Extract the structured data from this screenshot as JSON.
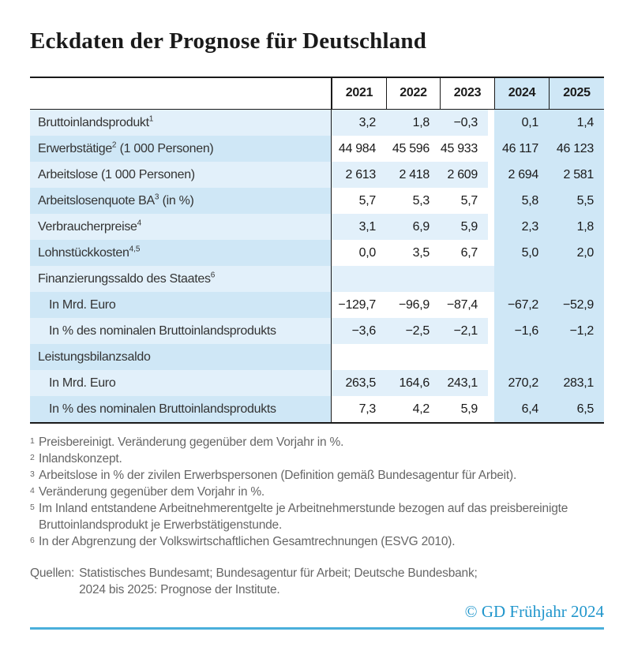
{
  "title": "Eckdaten der Prognose für Deutschland",
  "table": {
    "years": [
      "2021",
      "2022",
      "2023",
      "2024",
      "2025"
    ],
    "rows": [
      {
        "pre": "Bruttoinlandsprodukt",
        "sup": "1",
        "post": "",
        "values": [
          "3,2",
          "1,8",
          "−0,3",
          "0,1",
          "1,4"
        ]
      },
      {
        "pre": "Erwerbstätige",
        "sup": "2",
        "post": " (1 000 Personen)",
        "values": [
          "44 984",
          "45 596",
          "45 933",
          "46 117",
          "46 123"
        ]
      },
      {
        "pre": "Arbeitslose (1 000 Personen)",
        "sup": "",
        "post": "",
        "values": [
          "2 613",
          "2 418",
          "2 609",
          "2 694",
          "2 581"
        ]
      },
      {
        "pre": "Arbeitslosenquote BA",
        "sup": "3",
        "post": " (in %)",
        "values": [
          "5,7",
          "5,3",
          "5,7",
          "5,8",
          "5,5"
        ]
      },
      {
        "pre": "Verbraucherpreise",
        "sup": "4",
        "post": "",
        "values": [
          "3,1",
          "6,9",
          "5,9",
          "2,3",
          "1,8"
        ]
      },
      {
        "pre": "Lohnstückkosten",
        "sup": "4,5",
        "post": "",
        "values": [
          "0,0",
          "3,5",
          "6,7",
          "5,0",
          "2,0"
        ]
      },
      {
        "pre": "Finanzierungssaldo des Staates",
        "sup": "6",
        "post": "",
        "values": [
          "",
          "",
          "",
          "",
          ""
        ]
      },
      {
        "pre": "In Mrd. Euro",
        "sup": "",
        "post": "",
        "values": [
          "−129,7",
          "−96,9",
          "−87,4",
          "−67,2",
          "−52,9"
        ]
      },
      {
        "pre": "In % des nominalen Bruttoinlandsprodukts",
        "sup": "",
        "post": "",
        "values": [
          "−3,6",
          "−2,5",
          "−2,1",
          "−1,6",
          "−1,2"
        ]
      },
      {
        "pre": "Leistungsbilanzsaldo",
        "sup": "",
        "post": "",
        "values": [
          "",
          "",
          "",
          "",
          ""
        ]
      },
      {
        "pre": "In Mrd. Euro",
        "sup": "",
        "post": "",
        "values": [
          "263,5",
          "164,6",
          "243,1",
          "270,2",
          "283,1"
        ]
      },
      {
        "pre": "In % des nominalen Bruttoinlandsprodukts",
        "sup": "",
        "post": "",
        "values": [
          "7,3",
          "4,2",
          "5,9",
          "6,4",
          "6,5"
        ]
      }
    ]
  },
  "footnotes": [
    {
      "sup": "1",
      "text": "Preisbereinigt. Veränderung gegenüber dem Vorjahr in %."
    },
    {
      "sup": "2",
      "text": "Inlandskonzept."
    },
    {
      "sup": "3",
      "text": "Arbeitslose in % der zivilen Erwerbspersonen (Definition gemäß Bundesagentur für Arbeit)."
    },
    {
      "sup": "4",
      "text": "Veränderung gegenüber dem Vorjahr in %."
    },
    {
      "sup": "5",
      "text": "Im Inland entstandene Arbeitnehmerentgelte je Arbeitnehmerstunde bezogen auf das preisbereinigte Bruttoinlandsprodukt je Erwerbstätigenstunde."
    },
    {
      "sup": "6",
      "text": "In der Abgrenzung der Volkswirtschaftlichen Gesamtrechnungen (ESVG 2010)."
    }
  ],
  "sources": {
    "label": "Quellen:",
    "line1": "Statistisches Bundesamt; Bundesagentur für Arbeit; Deutsche Bundesbank;",
    "line2": "2024 bis 2025: Prognose der Institute."
  },
  "credit": "© GD Frühjahr 2024",
  "colors": {
    "row_light_blue": "#e2f0fa",
    "forecast_band_blue": "#cfe7f6",
    "table_border_black": "#1a1a1a",
    "footnote_gray": "#666666",
    "credit_blue": "#2196cc",
    "rule_blue": "#4aafdb"
  },
  "chart_data": {
    "type": "table",
    "title": "Eckdaten der Prognose für Deutschland",
    "columns": [
      "2021",
      "2022",
      "2023",
      "2024",
      "2025"
    ],
    "forecast_columns": [
      "2024",
      "2025"
    ],
    "rows": [
      {
        "label": "Bruttoinlandsprodukt¹",
        "values": [
          3.2,
          1.8,
          -0.3,
          0.1,
          1.4
        ]
      },
      {
        "label": "Erwerbstätige² (1 000 Personen)",
        "values": [
          44984,
          45596,
          45933,
          46117,
          46123
        ]
      },
      {
        "label": "Arbeitslose (1 000 Personen)",
        "values": [
          2613,
          2418,
          2609,
          2694,
          2581
        ]
      },
      {
        "label": "Arbeitslosenquote BA³ (in %)",
        "values": [
          5.7,
          5.3,
          5.7,
          5.8,
          5.5
        ]
      },
      {
        "label": "Verbraucherpreise⁴",
        "values": [
          3.1,
          6.9,
          5.9,
          2.3,
          1.8
        ]
      },
      {
        "label": "Lohnstückkosten⁴,⁵",
        "values": [
          0.0,
          3.5,
          6.7,
          5.0,
          2.0
        ]
      },
      {
        "label": "Finanzierungssaldo des Staates⁶ – In Mrd. Euro",
        "values": [
          -129.7,
          -96.9,
          -87.4,
          -67.2,
          -52.9
        ]
      },
      {
        "label": "Finanzierungssaldo des Staates⁶ – In % des nominalen Bruttoinlandsprodukts",
        "values": [
          -3.6,
          -2.5,
          -2.1,
          -1.6,
          -1.2
        ]
      },
      {
        "label": "Leistungsbilanzsaldo – In Mrd. Euro",
        "values": [
          263.5,
          164.6,
          243.1,
          270.2,
          283.1
        ]
      },
      {
        "label": "Leistungsbilanzsaldo – In % des nominalen Bruttoinlandsprodukts",
        "values": [
          7.3,
          4.2,
          5.9,
          6.4,
          6.5
        ]
      }
    ]
  }
}
